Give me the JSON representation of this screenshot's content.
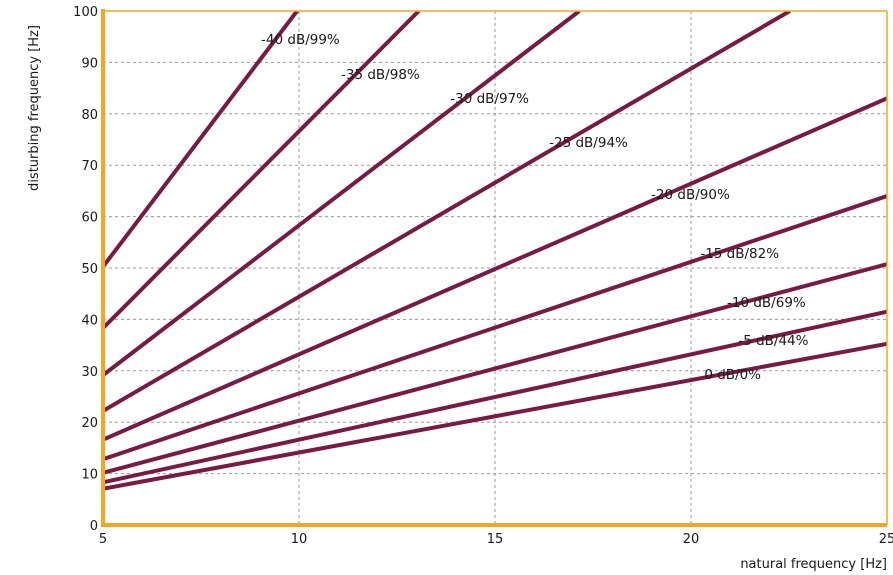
{
  "chart_data": {
    "type": "line",
    "title": "",
    "xlabel": "natural frequency [Hz]",
    "ylabel": "disturbing frequency [Hz]",
    "xlim": [
      5,
      25
    ],
    "ylim": [
      0,
      100
    ],
    "xticks": [
      5,
      10,
      15,
      20,
      25
    ],
    "yticks": [
      0,
      10,
      20,
      30,
      40,
      50,
      60,
      70,
      80,
      90,
      100
    ],
    "grid": true,
    "colors": {
      "line": "#7a1a44",
      "frame": "#f5a623",
      "grid": "#9a9a9a"
    },
    "series": [
      {
        "name": "-40 dB/99%",
        "slope": 10.05
      },
      {
        "name": "-35 dB/98%",
        "slope": 7.66
      },
      {
        "name": "-30 dB/97%",
        "slope": 5.83
      },
      {
        "name": "-25 dB/94%",
        "slope": 4.44
      },
      {
        "name": "-20 dB/90%",
        "slope": 3.32
      },
      {
        "name": "-15 dB/82%",
        "slope": 2.56
      },
      {
        "name": "-10 dB/69%",
        "slope": 2.03
      },
      {
        "name": "-5 dB/44%",
        "slope": 1.66
      },
      {
        "name": "0 dB/0%",
        "slope": 1.41
      }
    ]
  }
}
